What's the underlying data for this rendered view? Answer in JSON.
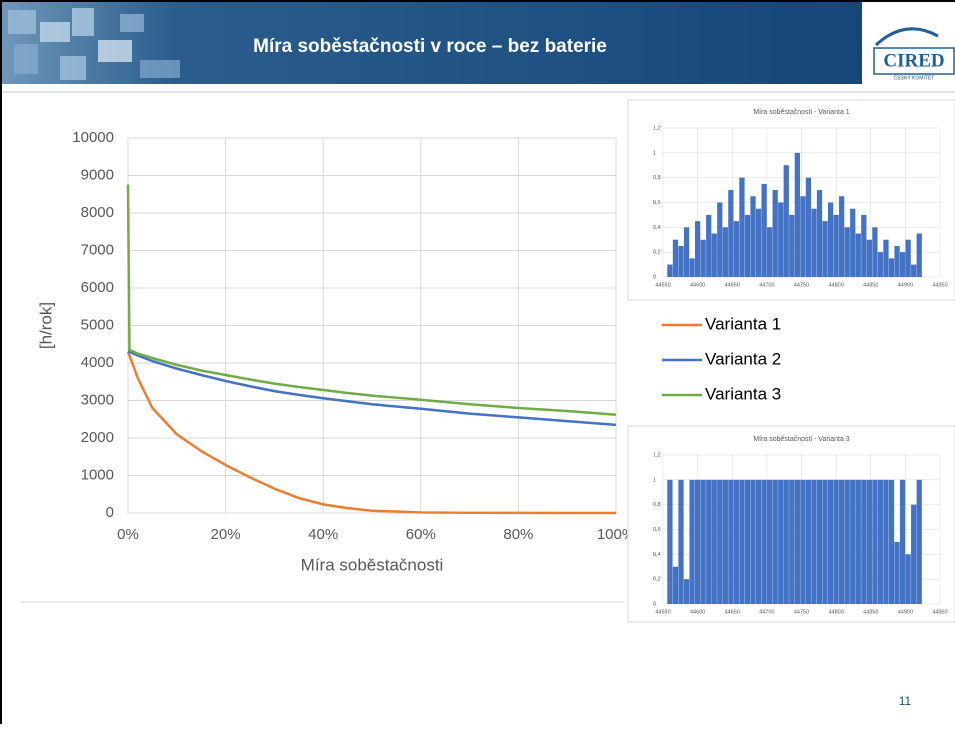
{
  "header": {
    "title": "Míra soběstačnosti v roce – bez baterie",
    "logo": "CIRED",
    "logo_subtitle": "ČESKÝ KOMITÉT"
  },
  "page_number": "11",
  "chart_data": [
    {
      "type": "line",
      "x_label": "Míra soběstačnosti",
      "y_label": "[h/rok]",
      "x": [
        0,
        0.003,
        0.02,
        0.05,
        0.1,
        0.15,
        0.2,
        0.25,
        0.3,
        0.35,
        0.4,
        0.45,
        0.5,
        0.6,
        0.7,
        0.8,
        0.9,
        1.0
      ],
      "series": [
        {
          "name": "Varianta 1",
          "color": "#ed7d31",
          "values": [
            4300,
            4200,
            3600,
            2800,
            2100,
            1650,
            1280,
            950,
            650,
            400,
            230,
            130,
            60,
            15,
            5,
            2,
            0,
            0
          ]
        },
        {
          "name": "Varianta 2",
          "color": "#4472c4",
          "values": [
            4300,
            4300,
            4200,
            4050,
            3850,
            3680,
            3520,
            3380,
            3250,
            3150,
            3060,
            2980,
            2900,
            2780,
            2650,
            2550,
            2450,
            2350
          ]
        },
        {
          "name": "Varianta 3",
          "color": "#70ad47",
          "values": [
            8760,
            4350,
            4250,
            4130,
            3950,
            3800,
            3680,
            3560,
            3450,
            3360,
            3280,
            3200,
            3130,
            3020,
            2900,
            2800,
            2720,
            2620
          ]
        }
      ],
      "xlim": [
        0,
        1
      ],
      "xticks": [
        {
          "value": 0,
          "label": "0%"
        },
        {
          "value": 0.2,
          "label": "20%"
        },
        {
          "value": 0.4,
          "label": "40%"
        },
        {
          "value": 0.6,
          "label": "60%"
        },
        {
          "value": 0.8,
          "label": "80%"
        },
        {
          "value": 1,
          "label": "100%"
        }
      ],
      "ylim": [
        0,
        10000
      ],
      "yticks": [
        0,
        1000,
        2000,
        3000,
        4000,
        5000,
        6000,
        7000,
        8000,
        9000,
        10000
      ],
      "grid": true
    },
    {
      "type": "bar",
      "title": "Míra soběstačnosti - Varianta 1",
      "color": "#4472c4",
      "x": [
        44560,
        44568,
        44576,
        44584,
        44592,
        44600,
        44608,
        44616,
        44624,
        44632,
        44640,
        44648,
        44656,
        44664,
        44672,
        44680,
        44688,
        44696,
        44704,
        44712,
        44720,
        44728,
        44736,
        44744,
        44752,
        44760,
        44768,
        44776,
        44784,
        44792,
        44800,
        44808,
        44816,
        44824,
        44832,
        44840,
        44848,
        44856,
        44864,
        44872,
        44880,
        44888,
        44896,
        44904,
        44912,
        44920
      ],
      "values": [
        0.1,
        0.3,
        0.25,
        0.4,
        0.15,
        0.45,
        0.3,
        0.5,
        0.35,
        0.6,
        0.4,
        0.7,
        0.45,
        0.8,
        0.5,
        0.65,
        0.55,
        0.75,
        0.4,
        0.7,
        0.6,
        0.9,
        0.5,
        1.0,
        0.65,
        0.8,
        0.55,
        0.7,
        0.45,
        0.6,
        0.5,
        0.65,
        0.4,
        0.55,
        0.35,
        0.5,
        0.3,
        0.4,
        0.2,
        0.3,
        0.15,
        0.25,
        0.2,
        0.3,
        0.1,
        0.35
      ],
      "xlim": [
        44550,
        44950
      ],
      "xticks": [
        44550,
        44600,
        44650,
        44700,
        44750,
        44800,
        44850,
        44900,
        44950
      ],
      "ylim": [
        0,
        1.2
      ],
      "yticks": [
        0,
        {
          "value": 0.2,
          "label": "0,2"
        },
        {
          "value": 0.4,
          "label": "0,4"
        },
        {
          "value": 0.6,
          "label": "0,6"
        },
        {
          "value": 0.8,
          "label": "0,8"
        },
        1,
        {
          "value": 1.2,
          "label": "1,2"
        }
      ],
      "grid": true
    },
    {
      "type": "bar",
      "title": "Míra soběstačnosti - Varianta 3",
      "color": "#4472c4",
      "x": [
        44560,
        44568,
        44576,
        44584,
        44592,
        44600,
        44608,
        44616,
        44624,
        44632,
        44640,
        44648,
        44656,
        44664,
        44672,
        44680,
        44688,
        44696,
        44704,
        44712,
        44720,
        44728,
        44736,
        44744,
        44752,
        44760,
        44768,
        44776,
        44784,
        44792,
        44800,
        44808,
        44816,
        44824,
        44832,
        44840,
        44848,
        44856,
        44864,
        44872,
        44880,
        44888,
        44896,
        44904,
        44912,
        44920
      ],
      "values": [
        1,
        0.3,
        1,
        0.2,
        1,
        1,
        1,
        1,
        1,
        1,
        1,
        1,
        1,
        1,
        1,
        1,
        1,
        1,
        1,
        1,
        1,
        1,
        1,
        1,
        1,
        1,
        1,
        1,
        1,
        1,
        1,
        1,
        1,
        1,
        1,
        1,
        1,
        1,
        1,
        1,
        1,
        0.5,
        1,
        0.4,
        0.8,
        1
      ],
      "xlim": [
        44550,
        44950
      ],
      "xticks": [
        44550,
        44600,
        44650,
        44700,
        44750,
        44800,
        44850,
        44900,
        44950
      ],
      "ylim": [
        0,
        1.2
      ],
      "yticks": [
        0,
        {
          "value": 0.2,
          "label": "0,2"
        },
        {
          "value": 0.4,
          "label": "0,4"
        },
        {
          "value": 0.6,
          "label": "0,6"
        },
        {
          "value": 0.8,
          "label": "0,8"
        },
        1,
        {
          "value": 1.2,
          "label": "1,2"
        }
      ],
      "grid": true
    }
  ]
}
